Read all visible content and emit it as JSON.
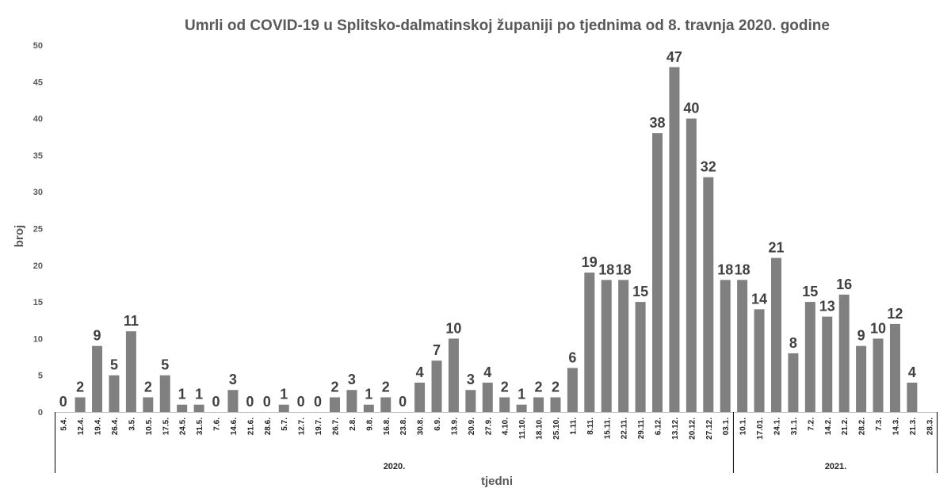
{
  "chart_data": {
    "type": "bar",
    "title": "Umrli od COVID-19 u Splitsko-dalmatinskoj županiji po tjednima od 8. travnja 2020. godine",
    "xlabel": "tjedni",
    "ylabel": "broj",
    "ylim": [
      0,
      50
    ],
    "yticks": [
      0,
      5,
      10,
      15,
      20,
      25,
      30,
      35,
      40,
      45,
      50
    ],
    "grid": false,
    "legend": "none",
    "bar_color": "#808080",
    "categories": [
      "5.4.",
      "12.4.",
      "19.4.",
      "26.4.",
      "3.5.",
      "10.5.",
      "17.5.",
      "24.5.",
      "31.5.",
      "7.6.",
      "14.6.",
      "21.6.",
      "28.6.",
      "5.7.",
      "12.7.",
      "19.7.",
      "26.7.",
      "2.8.",
      "9.8.",
      "16.8.",
      "23.8.",
      "30.8.",
      "6.9.",
      "13.9.",
      "20.9.",
      "27.9.",
      "4.10.",
      "11.10.",
      "18.10.",
      "25.10.",
      "1.11.",
      "8.11.",
      "15.11.",
      "22.11.",
      "29.11.",
      "6.12.",
      "13.12.",
      "20.12.",
      "27.12.",
      "03.1.",
      "10.1.",
      "17.01.",
      "24.1.",
      "31.1.",
      "7.2.",
      "14.2.",
      "21.2.",
      "28.2.",
      "7.3.",
      "14.3.",
      "21.3.",
      "28.3."
    ],
    "values": [
      0,
      2,
      9,
      5,
      11,
      2,
      5,
      1,
      1,
      0,
      3,
      0,
      0,
      1,
      0,
      0,
      2,
      3,
      1,
      2,
      0,
      4,
      7,
      10,
      3,
      4,
      2,
      1,
      2,
      2,
      6,
      19,
      18,
      18,
      15,
      38,
      47,
      40,
      32,
      18,
      18,
      14,
      21,
      8,
      15,
      13,
      16,
      9,
      10,
      12,
      4,
      null
    ],
    "groups": [
      {
        "label": "2020.",
        "start": 0,
        "end": 39
      },
      {
        "label": "2021.",
        "start": 40,
        "end": 51
      }
    ]
  }
}
